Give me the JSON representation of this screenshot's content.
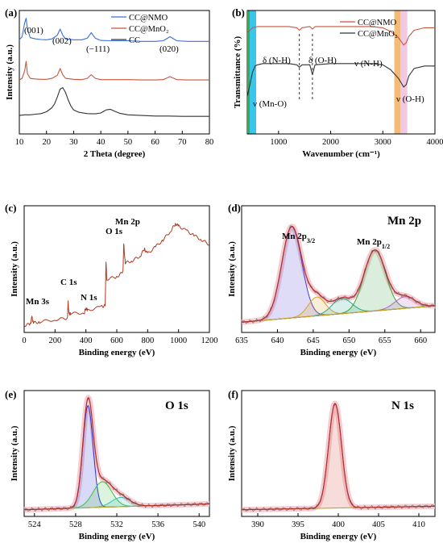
{
  "chart_data": [
    {
      "panel": "(a)",
      "type": "line",
      "xlabel": "2 Theta (degree)",
      "ylabel": "Intensity (a.u.)",
      "xlim": [
        10,
        80
      ],
      "xticks": [
        10,
        20,
        30,
        40,
        50,
        60,
        70,
        80
      ],
      "legend_position": "top-right",
      "series": [
        {
          "name": "CC@NMO",
          "color": "#3a6fd8",
          "x": [
            10,
            11,
            12,
            12.5,
            13,
            14,
            16,
            18,
            20,
            22,
            24,
            25,
            26,
            27,
            30,
            33,
            35,
            36.5,
            38,
            40,
            45,
            50,
            55,
            60,
            63,
            65.5,
            68,
            72,
            76,
            80
          ],
          "y": [
            3.05,
            3.15,
            3.6,
            3.75,
            3.4,
            3.12,
            3.08,
            3.06,
            3.05,
            3.08,
            3.2,
            3.4,
            3.2,
            3.08,
            3.05,
            3.05,
            3.1,
            3.28,
            3.1,
            3.03,
            3.02,
            3.02,
            3.0,
            3.0,
            3.02,
            3.15,
            3.02,
            3.0,
            3.0,
            3.0
          ]
        },
        {
          "name": "CC@MnO$_2$",
          "label": "CC@MnO₂",
          "color": "#c8563a",
          "x": [
            10,
            11,
            12,
            12.5,
            13,
            14,
            16,
            18,
            20,
            22,
            24,
            25,
            26,
            27,
            30,
            33,
            35,
            36.5,
            38,
            40,
            45,
            50,
            55,
            60,
            63,
            65.5,
            68,
            72,
            76,
            80
          ],
          "y": [
            1.75,
            1.8,
            2.05,
            2.35,
            1.95,
            1.8,
            1.78,
            1.77,
            1.77,
            1.8,
            1.9,
            2.12,
            1.92,
            1.8,
            1.77,
            1.76,
            1.8,
            1.92,
            1.8,
            1.76,
            1.76,
            1.76,
            1.75,
            1.75,
            1.76,
            1.86,
            1.76,
            1.75,
            1.75,
            1.75
          ]
        },
        {
          "name": "CC",
          "color": "#333333",
          "x": [
            10,
            12,
            14,
            16,
            18,
            20,
            22,
            23,
            24,
            25,
            26,
            27,
            28,
            29,
            30,
            32,
            35,
            38,
            40,
            42,
            43.5,
            45,
            47,
            50,
            55,
            60,
            65,
            70,
            75,
            80
          ],
          "y": [
            0.6,
            0.62,
            0.62,
            0.64,
            0.66,
            0.72,
            0.85,
            0.98,
            1.2,
            1.45,
            1.5,
            1.35,
            1.1,
            0.9,
            0.78,
            0.7,
            0.66,
            0.65,
            0.68,
            0.78,
            0.8,
            0.74,
            0.67,
            0.62,
            0.6,
            0.58,
            0.58,
            0.57,
            0.57,
            0.57
          ]
        }
      ],
      "annotations": [
        "(001)",
        "(002)",
        "(−111)",
        "(020)"
      ]
    },
    {
      "panel": "(b)",
      "type": "line",
      "xlabel": "Wavenumber (cm⁻¹)",
      "ylabel": "Transmittance (%)",
      "xlim": [
        400,
        4000
      ],
      "xticks": [
        1000,
        2000,
        3000,
        4000
      ],
      "legend_position": "top-right",
      "series": [
        {
          "name": "CC@NMO",
          "color": "#c8563a",
          "x": [
            400,
            500,
            600,
            700,
            900,
            1200,
            1350,
            1400,
            1450,
            1600,
            1650,
            1700,
            2000,
            2400,
            2800,
            3000,
            3150,
            3300,
            3400,
            3450,
            3500,
            3600,
            3800,
            4000
          ],
          "y": [
            0.82,
            0.86,
            0.87,
            0.87,
            0.87,
            0.87,
            0.86,
            0.84,
            0.86,
            0.87,
            0.85,
            0.87,
            0.87,
            0.87,
            0.87,
            0.86,
            0.83,
            0.78,
            0.72,
            0.74,
            0.79,
            0.84,
            0.86,
            0.86
          ]
        },
        {
          "name": "CC@MnO$_2$",
          "label": "CC@MnO₂",
          "color": "#333333",
          "x": [
            400,
            500,
            550,
            600,
            700,
            900,
            1200,
            1350,
            1400,
            1450,
            1600,
            1650,
            1700,
            2000,
            2400,
            2800,
            3000,
            3150,
            3300,
            3400,
            3450,
            3500,
            3600,
            3800,
            4000
          ],
          "y": [
            0.3,
            0.5,
            0.55,
            0.56,
            0.57,
            0.57,
            0.57,
            0.56,
            0.54,
            0.56,
            0.56,
            0.48,
            0.56,
            0.57,
            0.57,
            0.57,
            0.56,
            0.52,
            0.45,
            0.38,
            0.4,
            0.47,
            0.53,
            0.55,
            0.55
          ]
        }
      ],
      "annotations": [
        "δ (N-H)",
        "δ (O-H)",
        "ν (N-H)",
        "ν (Mn-O)",
        "ν (O-H)"
      ]
    },
    {
      "panel": "(c)",
      "type": "line",
      "xlabel": "Binding energy (eV)",
      "ylabel": "Intensity (a.u.)",
      "xlim": [
        0,
        1200
      ],
      "xticks": [
        0,
        200,
        400,
        600,
        800,
        1000,
        1200
      ],
      "series": [
        {
          "name": "",
          "color": "#b03a20",
          "x": [
            0,
            40,
            50,
            60,
            100,
            200,
            280,
            285,
            290,
            300,
            390,
            400,
            410,
            500,
            525,
            530,
            535,
            600,
            640,
            645,
            655,
            700,
            750,
            780,
            800,
            850,
            900,
            950,
            980,
            1000,
            1050,
            1100,
            1150,
            1200
          ],
          "y": [
            0.02,
            0.03,
            0.09,
            0.04,
            0.05,
            0.07,
            0.08,
            0.22,
            0.12,
            0.12,
            0.13,
            0.17,
            0.15,
            0.18,
            0.19,
            0.58,
            0.42,
            0.44,
            0.48,
            0.72,
            0.56,
            0.58,
            0.62,
            0.68,
            0.64,
            0.7,
            0.76,
            0.84,
            0.9,
            0.88,
            0.84,
            0.8,
            0.76,
            0.72
          ]
        }
      ],
      "annotations": [
        "Mn 3s",
        "C 1s",
        "N 1s",
        "O 1s",
        "Mn 2p"
      ]
    },
    {
      "panel": "(d)",
      "type": "line",
      "title": "Mn 2p",
      "xlabel": "Binding energy (eV)",
      "ylabel": "Intensity (a.u.)",
      "xlim": [
        635,
        662
      ],
      "xticks": [
        635,
        640,
        645,
        650,
        655,
        660
      ],
      "peaks": [
        {
          "center": 642.0,
          "height": 0.78,
          "width": 1.4,
          "color": "#4a3fd0"
        },
        {
          "center": 645.5,
          "height": 0.16,
          "width": 1.2,
          "color": "#e0a020"
        },
        {
          "center": 649.0,
          "height": 0.13,
          "width": 1.4,
          "color": "#2aa890"
        },
        {
          "center": 653.6,
          "height": 0.52,
          "width": 1.5,
          "color": "#3aa040"
        },
        {
          "center": 657.8,
          "height": 0.1,
          "width": 1.4,
          "color": "#b060c0"
        }
      ],
      "baseline": [
        0.06,
        0.2
      ],
      "annotations": [
        "Mn 2p3/2",
        "Mn 2p1/2"
      ]
    },
    {
      "panel": "(e)",
      "type": "line",
      "title": "O 1s",
      "xlabel": "Binding energy (eV)",
      "ylabel": "Intensity (a.u.)",
      "xlim": [
        523,
        541
      ],
      "xticks": [
        524,
        528,
        532,
        536,
        540
      ],
      "peaks": [
        {
          "center": 529.2,
          "height": 0.88,
          "width": 0.5,
          "color": "#2a30d0"
        },
        {
          "center": 530.6,
          "height": 0.22,
          "width": 0.9,
          "color": "#3cc040"
        },
        {
          "center": 532.4,
          "height": 0.08,
          "width": 0.9,
          "color": "#30c0c0"
        }
      ],
      "baseline": [
        0.03,
        0.08
      ],
      "annotations": []
    },
    {
      "panel": "(f)",
      "type": "line",
      "title": "N 1s",
      "xlabel": "Binding energy (eV)",
      "ylabel": "Intensity (a.u.)",
      "xlim": [
        388,
        412
      ],
      "xticks": [
        390,
        395,
        400,
        405,
        410
      ],
      "peaks": [
        {
          "center": 399.6,
          "height": 0.9,
          "width": 0.8,
          "color": "#d04030"
        }
      ],
      "baseline": [
        0.03,
        0.06
      ],
      "annotations": []
    }
  ]
}
